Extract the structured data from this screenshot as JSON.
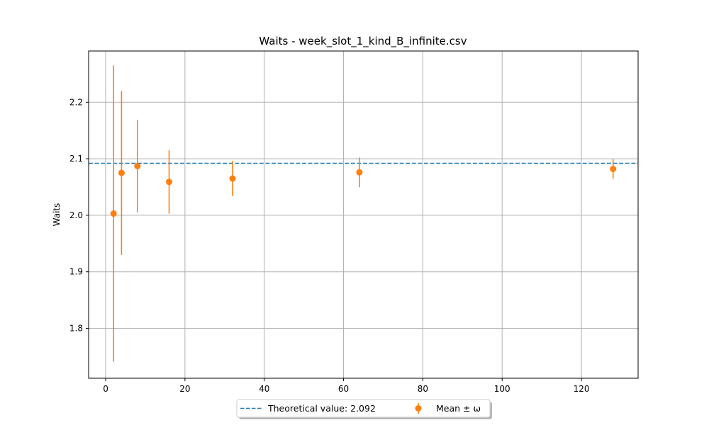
{
  "chart_data": {
    "type": "scatter",
    "title": "Waits - week_slot_1_kind_B_infinite.csv",
    "xlabel": "",
    "ylabel": "Waits",
    "xlim": [
      -4.3,
      134.3
    ],
    "ylim": [
      1.7117,
      2.2906
    ],
    "x_ticks": [
      0,
      20,
      40,
      60,
      80,
      100,
      120
    ],
    "y_ticks": [
      1.8,
      1.9,
      2.0,
      2.1,
      2.2
    ],
    "x_tick_labels": [
      "0",
      "20",
      "40",
      "60",
      "80",
      "100",
      "120"
    ],
    "y_tick_labels": [
      "1.8",
      "1.9",
      "2.0",
      "2.1",
      "2.2"
    ],
    "grid": true,
    "legend_position": "bottom-center",
    "series": [
      {
        "name": "Mean ± ω",
        "type": "errorbar",
        "color": "#ff7f0e",
        "x": [
          2,
          4,
          8,
          16,
          32,
          64,
          128
        ],
        "y": [
          2.003,
          2.075,
          2.087,
          2.059,
          2.065,
          2.076,
          2.082
        ],
        "err": [
          0.262,
          0.145,
          0.082,
          0.056,
          0.031,
          0.026,
          0.017
        ]
      }
    ],
    "reference_line": {
      "name": "Theoretical value: 2.092",
      "value": 2.092,
      "color": "#1f77b4",
      "style": "dashed"
    }
  }
}
